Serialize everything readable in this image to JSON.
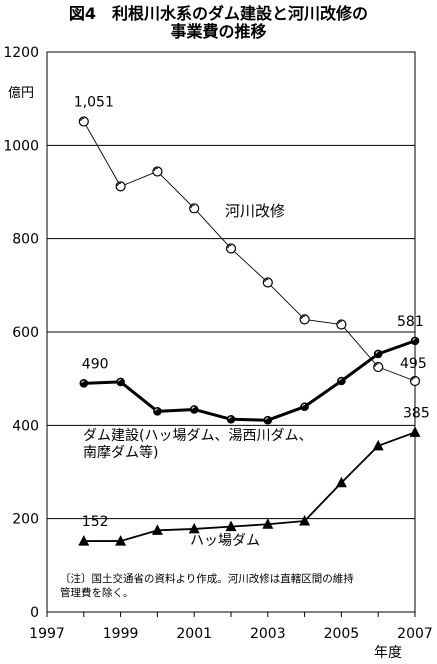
{
  "title": {
    "line1": "図4　利根川水系のダム建設と河川改修の",
    "line2": "事業費の推移"
  },
  "chart_data": {
    "type": "line",
    "title": "図4　利根川水系のダム建設と河川改修の 事業費の推移",
    "ylabel": "億円",
    "xlabel": "年度",
    "xlim": [
      1997,
      2007
    ],
    "ylim": [
      0,
      1200
    ],
    "xticks": [
      "1997",
      "1999",
      "2001",
      "2003",
      "2005",
      "2007"
    ],
    "yticks": [
      "0",
      "200",
      "400",
      "600",
      "800",
      "1000",
      "1200"
    ],
    "grid": "horizontal",
    "series": [
      {
        "name": "河川改修",
        "marker": "circle",
        "line": "thin",
        "x": [
          1998,
          1999,
          2000,
          2001,
          2002,
          2003,
          2004,
          2005,
          2006,
          2007
        ],
        "values": [
          1051,
          912,
          944,
          865,
          779,
          706,
          627,
          616,
          525,
          495
        ]
      },
      {
        "name": "ダム建設(ハッ場ダム、湯西川ダム、南摩ダム等)",
        "marker": "dot",
        "line": "thick",
        "x": [
          1998,
          1999,
          2000,
          2001,
          2002,
          2003,
          2004,
          2005,
          2006,
          2007
        ],
        "values": [
          490,
          493,
          430,
          434,
          413,
          411,
          440,
          495,
          553,
          581
        ]
      },
      {
        "name": "ハッ場ダム",
        "marker": "triangle",
        "line": "medium",
        "x": [
          1998,
          1999,
          2000,
          2001,
          2002,
          2003,
          2004,
          2005,
          2006,
          2007
        ],
        "values": [
          152,
          152,
          175,
          178,
          183,
          188,
          195,
          277,
          356,
          385
        ]
      }
    ],
    "data_labels": [
      {
        "series": 0,
        "index": 0,
        "text": "1,051"
      },
      {
        "series": 0,
        "index": 9,
        "text": "495"
      },
      {
        "series": 1,
        "index": 0,
        "text": "490"
      },
      {
        "series": 1,
        "index": 9,
        "text": "581"
      },
      {
        "series": 2,
        "index": 0,
        "text": "152"
      },
      {
        "series": 2,
        "index": 9,
        "text": "385"
      }
    ],
    "series_labels": {
      "river": "河川改修",
      "dam_line1": "ダム建設(ハッ場ダム、湯西川ダム、",
      "dam_line2": "南摩ダム等)",
      "yamba": "ハッ場ダム"
    },
    "note_line1": "〔注〕国土交通省の資料より作成。河川改修は直轄区間の維持",
    "note_line2": "管理費を除く。"
  }
}
